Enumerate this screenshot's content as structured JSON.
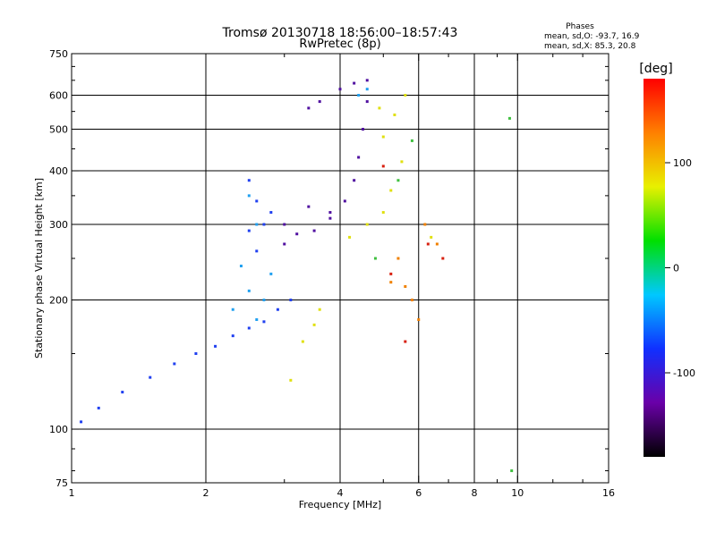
{
  "chart_data": {
    "type": "scatter",
    "title": "Tromsø 20130718 18:56:00–18:57:43",
    "subtitle": "RwPretec (8p)",
    "xlabel": "Frequency [MHz]",
    "ylabel": "Stationary phase Virtual Height [km]",
    "x_scale": "log",
    "y_scale": "log",
    "xlim": [
      1,
      16
    ],
    "ylim": [
      75,
      750
    ],
    "x_ticks": [
      1,
      2,
      4,
      6,
      8,
      10,
      16
    ],
    "x_minor_ticks": [
      3,
      5,
      7,
      9,
      12,
      14
    ],
    "y_ticks": [
      75,
      100,
      200,
      300,
      400,
      500,
      600,
      750
    ],
    "y_minor_ticks": [
      80,
      90,
      150,
      250,
      350,
      450,
      550,
      650,
      700
    ],
    "x_gridlines": [
      2,
      4,
      6,
      8,
      10
    ],
    "y_gridlines": [
      100,
      200,
      300,
      400,
      500,
      600
    ],
    "grid": true,
    "phases_box": {
      "title": "Phases",
      "line_o": "mean, sd,O: -93.7, 16.9",
      "line_x": "mean, sd,X:  85.3, 20.8"
    },
    "colorbar": {
      "label": "[deg]",
      "range": [
        -180,
        180
      ],
      "ticks": [
        100,
        0,
        -100
      ],
      "colormap": [
        "#000000",
        "#6a00a8",
        "#1030ff",
        "#00c8ff",
        "#00e000",
        "#e8f000",
        "#ff8000",
        "#ff0000"
      ]
    },
    "series": [
      {
        "name": "blue",
        "color": "#2040f0",
        "points": [
          [
            1.05,
            104
          ],
          [
            1.15,
            112
          ],
          [
            1.3,
            122
          ],
          [
            1.5,
            132
          ],
          [
            1.7,
            142
          ],
          [
            1.9,
            150
          ],
          [
            2.1,
            156
          ],
          [
            2.3,
            165
          ],
          [
            2.5,
            172
          ],
          [
            2.7,
            178
          ],
          [
            2.9,
            190
          ],
          [
            3.1,
            200
          ],
          [
            2.6,
            260
          ],
          [
            2.7,
            300
          ],
          [
            2.6,
            340
          ],
          [
            2.5,
            380
          ],
          [
            2.8,
            320
          ],
          [
            2.5,
            290
          ]
        ]
      },
      {
        "name": "purple",
        "color": "#5010a0",
        "points": [
          [
            3.0,
            300
          ],
          [
            3.2,
            285
          ],
          [
            3.5,
            290
          ],
          [
            3.8,
            310
          ],
          [
            4.1,
            340
          ],
          [
            4.3,
            380
          ],
          [
            4.4,
            430
          ],
          [
            4.5,
            500
          ],
          [
            4.6,
            580
          ],
          [
            4.6,
            650
          ],
          [
            3.4,
            560
          ],
          [
            3.6,
            580
          ],
          [
            4.0,
            620
          ],
          [
            4.3,
            640
          ],
          [
            3.0,
            270
          ],
          [
            3.4,
            330
          ],
          [
            3.8,
            320
          ]
        ]
      },
      {
        "name": "cyan",
        "color": "#20a0f0",
        "points": [
          [
            2.4,
            240
          ],
          [
            2.5,
            210
          ],
          [
            2.6,
            180
          ],
          [
            2.7,
            200
          ],
          [
            2.8,
            230
          ],
          [
            2.5,
            350
          ],
          [
            2.6,
            300
          ],
          [
            4.4,
            600
          ],
          [
            4.6,
            620
          ],
          [
            2.3,
            190
          ]
        ]
      },
      {
        "name": "yellow",
        "color": "#e0e010",
        "points": [
          [
            3.1,
            130
          ],
          [
            3.3,
            160
          ],
          [
            3.5,
            175
          ],
          [
            3.6,
            190
          ],
          [
            4.2,
            280
          ],
          [
            4.6,
            300
          ],
          [
            5.0,
            320
          ],
          [
            5.2,
            360
          ],
          [
            5.5,
            420
          ],
          [
            5.0,
            480
          ],
          [
            5.3,
            540
          ],
          [
            4.9,
            560
          ],
          [
            5.6,
            600
          ],
          [
            6.4,
            280
          ]
        ]
      },
      {
        "name": "orange",
        "color": "#f08000",
        "points": [
          [
            5.2,
            220
          ],
          [
            5.6,
            215
          ],
          [
            6.2,
            300
          ],
          [
            6.6,
            270
          ],
          [
            5.8,
            200
          ],
          [
            5.4,
            250
          ],
          [
            6.0,
            180
          ]
        ]
      },
      {
        "name": "green",
        "color": "#40c040",
        "points": [
          [
            4.8,
            250
          ],
          [
            5.4,
            380
          ],
          [
            5.8,
            470
          ],
          [
            9.6,
            530
          ],
          [
            9.7,
            80
          ]
        ]
      },
      {
        "name": "red",
        "color": "#d82010",
        "points": [
          [
            5.0,
            410
          ],
          [
            5.2,
            230
          ],
          [
            6.3,
            270
          ],
          [
            6.8,
            250
          ],
          [
            5.6,
            160
          ]
        ]
      }
    ]
  }
}
